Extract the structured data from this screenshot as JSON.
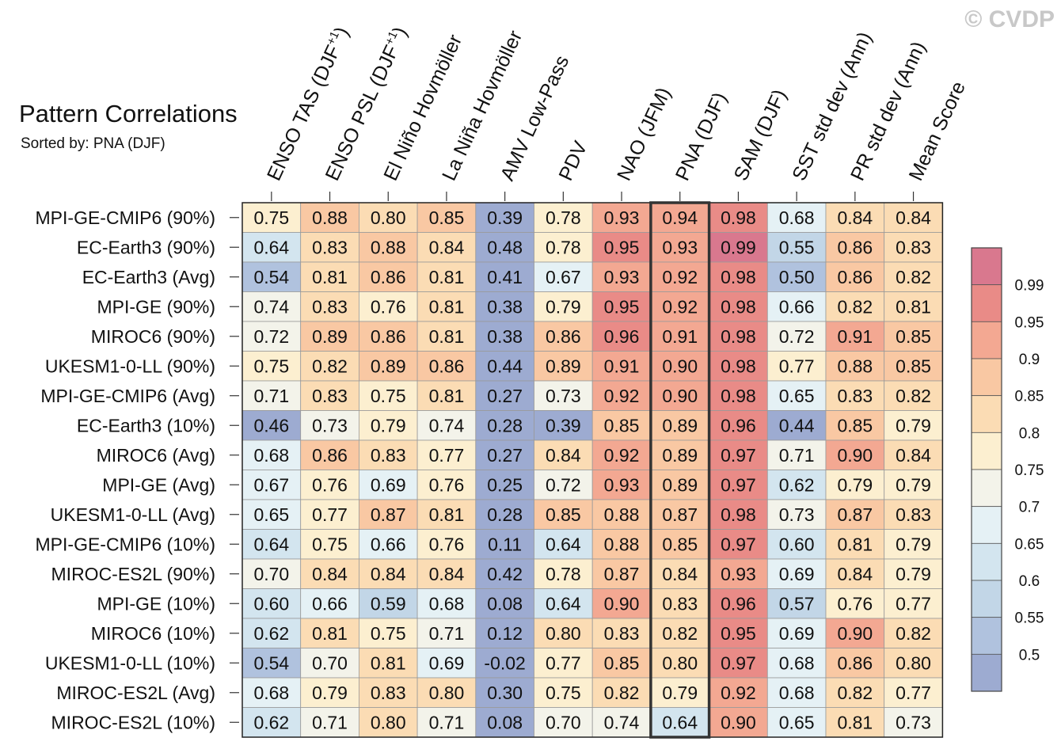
{
  "watermark": "© CVDP",
  "chart_data": {
    "type": "heatmap",
    "title": "Pattern Correlations",
    "subtitle": "Sorted by: PNA (DJF)",
    "highlighted_column": "PNA (DJF)",
    "columns": [
      "ENSO TAS (DJF+1)",
      "ENSO PSL (DJF+1)",
      "El Niño Hovmöller",
      "La Niña Hovmöller",
      "AMV Low-Pass",
      "PDV",
      "NAO (JFM)",
      "PNA (DJF)",
      "SAM (DJF)",
      "SST std dev (Ann)",
      "PR std dev (Ann)",
      "Mean Score"
    ],
    "rows": [
      "MPI-GE-CMIP6 (90%)",
      "EC-Earth3 (90%)",
      "EC-Earth3 (Avg)",
      "MPI-GE (90%)",
      "MIROC6 (90%)",
      "UKESM1-0-LL (90%)",
      "MPI-GE-CMIP6 (Avg)",
      "EC-Earth3 (10%)",
      "MIROC6 (Avg)",
      "MPI-GE (Avg)",
      "UKESM1-0-LL (Avg)",
      "MPI-GE-CMIP6 (10%)",
      "MIROC-ES2L (90%)",
      "MPI-GE (10%)",
      "MIROC6 (10%)",
      "UKESM1-0-LL (10%)",
      "MIROC-ES2L (Avg)",
      "MIROC-ES2L (10%)"
    ],
    "values": [
      [
        "0.75",
        "0.88",
        "0.80",
        "0.85",
        "0.39",
        "0.78",
        "0.93",
        "0.94",
        "0.98",
        "0.68",
        "0.84",
        "0.84"
      ],
      [
        "0.64",
        "0.83",
        "0.88",
        "0.84",
        "0.48",
        "0.78",
        "0.95",
        "0.93",
        "0.99",
        "0.55",
        "0.86",
        "0.83"
      ],
      [
        "0.54",
        "0.81",
        "0.86",
        "0.81",
        "0.41",
        "0.67",
        "0.93",
        "0.92",
        "0.98",
        "0.50",
        "0.86",
        "0.82"
      ],
      [
        "0.74",
        "0.83",
        "0.76",
        "0.81",
        "0.38",
        "0.79",
        "0.95",
        "0.92",
        "0.98",
        "0.66",
        "0.82",
        "0.81"
      ],
      [
        "0.72",
        "0.89",
        "0.86",
        "0.81",
        "0.38",
        "0.86",
        "0.96",
        "0.91",
        "0.98",
        "0.72",
        "0.91",
        "0.85"
      ],
      [
        "0.75",
        "0.82",
        "0.89",
        "0.86",
        "0.44",
        "0.89",
        "0.91",
        "0.90",
        "0.98",
        "0.77",
        "0.88",
        "0.85"
      ],
      [
        "0.71",
        "0.83",
        "0.75",
        "0.81",
        "0.27",
        "0.73",
        "0.92",
        "0.90",
        "0.98",
        "0.65",
        "0.83",
        "0.82"
      ],
      [
        "0.46",
        "0.73",
        "0.79",
        "0.74",
        "0.28",
        "0.39",
        "0.85",
        "0.89",
        "0.96",
        "0.44",
        "0.85",
        "0.79"
      ],
      [
        "0.68",
        "0.86",
        "0.83",
        "0.77",
        "0.27",
        "0.84",
        "0.92",
        "0.89",
        "0.97",
        "0.71",
        "0.90",
        "0.84"
      ],
      [
        "0.67",
        "0.76",
        "0.69",
        "0.76",
        "0.25",
        "0.72",
        "0.93",
        "0.89",
        "0.97",
        "0.62",
        "0.79",
        "0.79"
      ],
      [
        "0.65",
        "0.77",
        "0.87",
        "0.81",
        "0.28",
        "0.85",
        "0.88",
        "0.87",
        "0.98",
        "0.73",
        "0.87",
        "0.83"
      ],
      [
        "0.64",
        "0.75",
        "0.66",
        "0.76",
        "0.11",
        "0.64",
        "0.88",
        "0.85",
        "0.97",
        "0.60",
        "0.81",
        "0.79"
      ],
      [
        "0.70",
        "0.84",
        "0.84",
        "0.84",
        "0.42",
        "0.78",
        "0.87",
        "0.84",
        "0.93",
        "0.69",
        "0.84",
        "0.79"
      ],
      [
        "0.60",
        "0.66",
        "0.59",
        "0.68",
        "0.08",
        "0.64",
        "0.90",
        "0.83",
        "0.96",
        "0.57",
        "0.76",
        "0.77"
      ],
      [
        "0.62",
        "0.81",
        "0.75",
        "0.71",
        "0.12",
        "0.80",
        "0.83",
        "0.82",
        "0.95",
        "0.69",
        "0.90",
        "0.82"
      ],
      [
        "0.54",
        "0.70",
        "0.81",
        "0.69",
        "-0.02",
        "0.77",
        "0.85",
        "0.80",
        "0.97",
        "0.68",
        "0.86",
        "0.80"
      ],
      [
        "0.68",
        "0.79",
        "0.83",
        "0.80",
        "0.30",
        "0.75",
        "0.82",
        "0.79",
        "0.92",
        "0.68",
        "0.82",
        "0.77"
      ],
      [
        "0.62",
        "0.71",
        "0.80",
        "0.71",
        "0.08",
        "0.70",
        "0.74",
        "0.64",
        "0.90",
        "0.65",
        "0.81",
        "0.73"
      ]
    ],
    "colorbar": {
      "ticks": [
        "0.5",
        "0.55",
        "0.6",
        "0.65",
        "0.7",
        "0.75",
        "0.8",
        "0.85",
        "0.9",
        "0.95",
        "0.99"
      ],
      "bins": [
        {
          "upper": 0.5,
          "color": "#9dabd1"
        },
        {
          "upper": 0.55,
          "color": "#b0c2de"
        },
        {
          "upper": 0.6,
          "color": "#c2d6e7"
        },
        {
          "upper": 0.65,
          "color": "#d3e5ef"
        },
        {
          "upper": 0.7,
          "color": "#e5f1f5"
        },
        {
          "upper": 0.75,
          "color": "#f3f3ea"
        },
        {
          "upper": 0.8,
          "color": "#fcefd0"
        },
        {
          "upper": 0.85,
          "color": "#fbdcb4"
        },
        {
          "upper": 0.9,
          "color": "#f9c8a3"
        },
        {
          "upper": 0.95,
          "color": "#f3a892"
        },
        {
          "upper": 0.99,
          "color": "#e98b87"
        },
        {
          "upper": 1.01,
          "color": "#d9788e"
        }
      ]
    }
  }
}
